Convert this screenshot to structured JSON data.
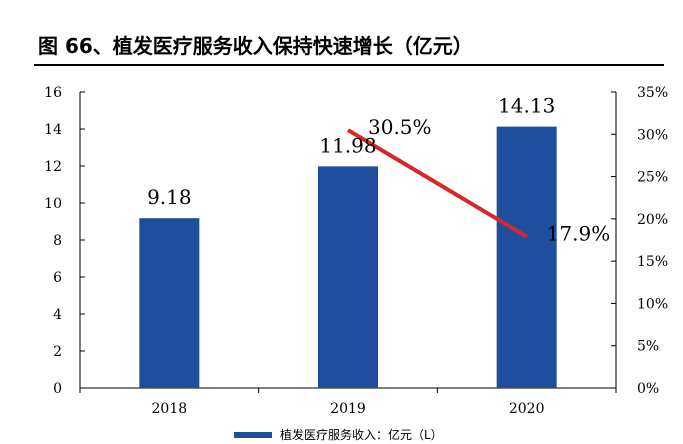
{
  "header": {
    "title": "图 66、植发医疗服务收入保持快速增长（亿元）"
  },
  "colors": {
    "bar": "#1f4e9c",
    "line": "#d62828",
    "axis": "#000000"
  },
  "chart_data": {
    "type": "bar",
    "categories": [
      "2018",
      "2019",
      "2020"
    ],
    "series": [
      {
        "name": "植发医疗服务收入：亿元（L）",
        "type": "bar",
        "axis": "left",
        "values": [
          9.18,
          11.98,
          14.13
        ],
        "labels": [
          "9.18",
          "11.98",
          "14.13"
        ]
      },
      {
        "type": "line",
        "axis": "right",
        "values": [
          null,
          30.5,
          17.9
        ],
        "labels": [
          "",
          "30.5%",
          "17.9%"
        ]
      }
    ],
    "y_left": {
      "min": 0,
      "max": 16,
      "ticks": [
        "0",
        "2",
        "4",
        "6",
        "8",
        "10",
        "12",
        "14",
        "16"
      ]
    },
    "y_right": {
      "min": 0,
      "max": 35,
      "ticks": [
        "0%",
        "5%",
        "10%",
        "15%",
        "20%",
        "25%",
        "30%",
        "35%"
      ]
    },
    "grid": false,
    "legend": {
      "position": "bottom",
      "entries": [
        "植发医疗服务收入：亿元（L）"
      ]
    }
  }
}
